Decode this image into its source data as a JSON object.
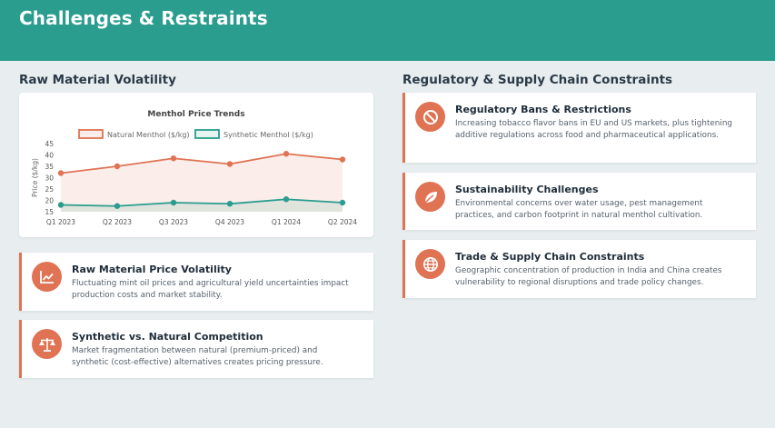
{
  "page": {
    "title": "Challenges & Restraints"
  },
  "left": {
    "heading": "Raw Material Volatility",
    "items": [
      {
        "icon": "chart-line-icon",
        "title": "Raw Material Price Volatility",
        "description": "Fluctuating mint oil prices and agricultural yield uncertainties impact production costs and market stability."
      },
      {
        "icon": "balance-scale-icon",
        "title": "Synthetic vs. Natural Competition",
        "description": "Market fragmentation between natural (premium-priced) and synthetic (cost-effective) alternatives creates pricing pressure."
      }
    ]
  },
  "right": {
    "heading": "Regulatory & Supply Chain Constraints",
    "items": [
      {
        "icon": "ban-icon",
        "title": "Regulatory Bans & Restrictions",
        "description": "Increasing tobacco flavor bans in EU and US markets, plus tightening additive regulations across food and pharmaceutical applications."
      },
      {
        "icon": "leaf-icon",
        "title": "Sustainability Challenges",
        "description": "Environmental concerns over water usage, pest management practices, and carbon footprint in natural menthol cultivation."
      },
      {
        "icon": "globe-icon",
        "title": "Trade & Supply Chain Constraints",
        "description": "Geographic concentration of production in India and China creates vulnerability to regional disruptions and trade policy changes."
      }
    ]
  },
  "colors": {
    "header": "#2a9d8f",
    "accent": "#e07354",
    "natural": "#e07354",
    "synthetic": "#2a9d8f"
  },
  "chart_data": {
    "type": "line",
    "title": "Menthol Price Trends",
    "xlabel": "",
    "ylabel": "Price ($/kg)",
    "categories": [
      "Q1 2023",
      "Q2 2023",
      "Q3 2023",
      "Q4 2023",
      "Q1 2024",
      "Q2 2024"
    ],
    "ylim": [
      15,
      45
    ],
    "yticks": [
      "15",
      "20",
      "25",
      "30",
      "35",
      "40",
      "45"
    ],
    "series": [
      {
        "name": "Natural Menthol ($/kg)",
        "values": [
          32,
          35,
          38.5,
          36,
          40.5,
          38
        ],
        "fill": true
      },
      {
        "name": "Synthetic Menthol ($/kg)",
        "values": [
          18,
          17.5,
          19,
          18.5,
          20.5,
          19
        ],
        "fill": true
      }
    ],
    "legend": "top",
    "grid": false
  }
}
